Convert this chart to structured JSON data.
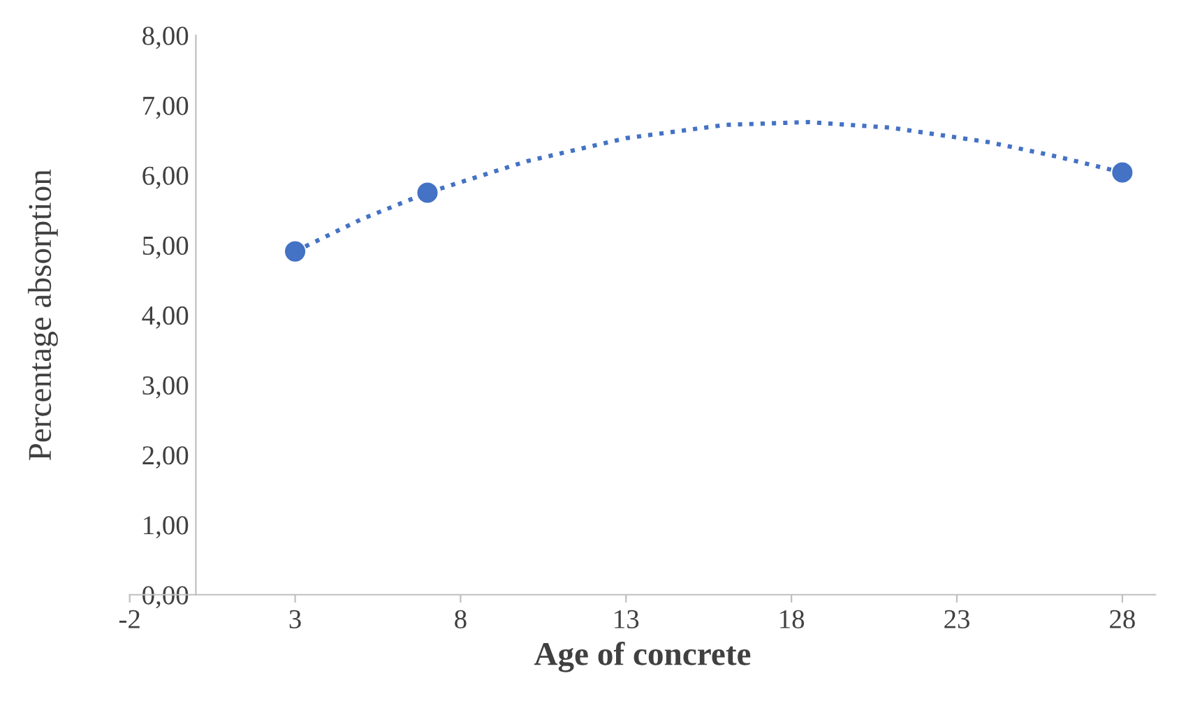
{
  "chart_data": {
    "type": "scatter",
    "xlabel": "Age of concrete",
    "ylabel": "Percentage absorption",
    "x": [
      3,
      7,
      28
    ],
    "series": [
      {
        "color": "#4472c4",
        "values": [
          4.91,
          5.75,
          6.04
        ],
        "marker": "circle"
      },
      {
        "type": "line",
        "color": "#4472c4",
        "line_style": "dotted",
        "marker": "none",
        "x": [
          3,
          5,
          7,
          10,
          13,
          16,
          18.5,
          21,
          24,
          26,
          28
        ],
        "values": [
          4.91,
          5.37,
          5.75,
          6.2,
          6.53,
          6.72,
          6.76,
          6.68,
          6.47,
          6.27,
          6.04
        ]
      }
    ],
    "xlim": [
      -2,
      29
    ],
    "xticks": [
      -2,
      3,
      8,
      13,
      18,
      23,
      28
    ],
    "ylim": [
      0,
      8
    ],
    "yticks": [
      {
        "value": 0,
        "label": "0,00"
      },
      {
        "value": 1,
        "label": "1,00"
      },
      {
        "value": 2,
        "label": "2,00"
      },
      {
        "value": 3,
        "label": "3,00"
      },
      {
        "value": 4,
        "label": "4,00"
      },
      {
        "value": 5,
        "label": "5,00"
      },
      {
        "value": 6,
        "label": "6,00"
      },
      {
        "value": 7,
        "label": "7,00"
      },
      {
        "value": 8,
        "label": "8,00"
      }
    ],
    "grid": false,
    "legend": false
  }
}
